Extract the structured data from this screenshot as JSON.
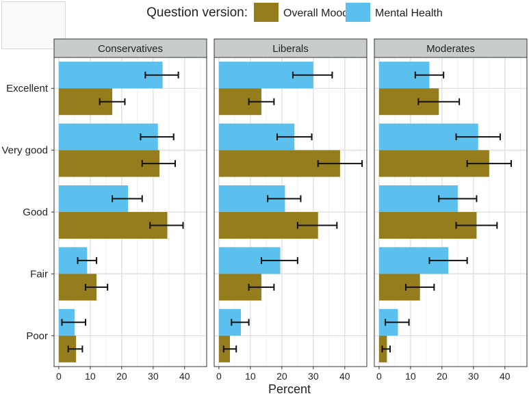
{
  "chart_data": {
    "type": "bar",
    "orientation": "horizontal",
    "legend": {
      "title": "Question version:",
      "entries": [
        {
          "name": "Overall Mood",
          "color": "#957c1c"
        },
        {
          "name": "Mental Health",
          "color": "#5bc0ee"
        }
      ],
      "position": "top"
    },
    "categories": [
      "Excellent",
      "Very good",
      "Good",
      "Fair",
      "Poor"
    ],
    "xlabel": "Percent",
    "ylabel": "",
    "xlim": [
      -1.5,
      47
    ],
    "xticks": [
      0,
      10,
      20,
      30,
      40
    ],
    "grid": true,
    "panels": [
      {
        "title": "Conservatives",
        "series": [
          {
            "name": "Mental Health",
            "values": [
              33,
              31.5,
              22,
              9,
              5
            ],
            "ci_low": [
              27.5,
              26,
              17,
              6,
              1
            ],
            "ci_high": [
              38,
              36.5,
              26.5,
              12,
              8.5
            ]
          },
          {
            "name": "Overall Mood",
            "values": [
              17,
              32,
              34.5,
              12,
              5.5
            ],
            "ci_low": [
              13,
              26.5,
              29,
              8.5,
              3
            ],
            "ci_high": [
              21,
              37,
              39.5,
              15.5,
              7.5
            ]
          }
        ]
      },
      {
        "title": "Liberals",
        "series": [
          {
            "name": "Mental Health",
            "values": [
              30,
              24,
              21,
              19.5,
              7
            ],
            "ci_low": [
              23.5,
              18.5,
              15.5,
              13.5,
              4
            ],
            "ci_high": [
              36,
              29.5,
              26,
              25,
              9.5
            ]
          },
          {
            "name": "Overall Mood",
            "values": [
              13.5,
              38.5,
              31.5,
              13.5,
              3.5
            ],
            "ci_low": [
              9.5,
              31.5,
              25,
              9.5,
              1.5
            ],
            "ci_high": [
              17.5,
              45.5,
              37.5,
              17.5,
              5.5
            ]
          }
        ]
      },
      {
        "title": "Moderates",
        "series": [
          {
            "name": "Mental Health",
            "values": [
              16,
              31.5,
              25,
              22,
              6
            ],
            "ci_low": [
              11.5,
              24.5,
              19,
              16,
              2
            ],
            "ci_high": [
              20.5,
              38.5,
              31,
              28,
              9.5
            ]
          },
          {
            "name": "Overall Mood",
            "values": [
              19,
              35,
              31,
              13,
              2.5
            ],
            "ci_low": [
              12.5,
              28,
              24.5,
              8.5,
              1
            ],
            "ci_high": [
              25.5,
              42,
              37.5,
              17.5,
              3.5
            ]
          }
        ]
      }
    ]
  }
}
